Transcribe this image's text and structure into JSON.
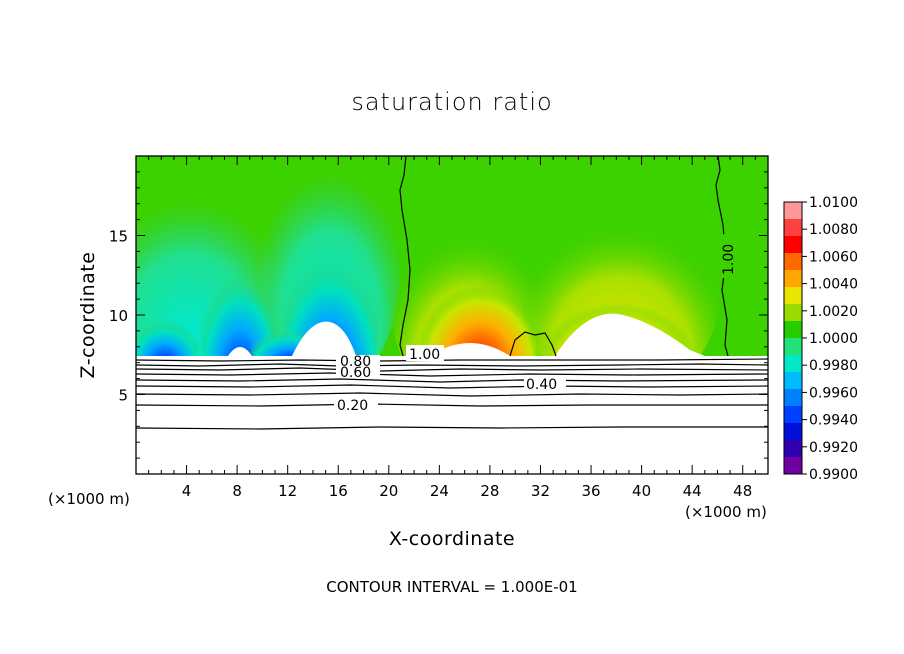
{
  "chart_data": {
    "type": "heatmap",
    "title": "saturation ratio",
    "xlabel": "X-coordinate",
    "ylabel": "Z-coordinate",
    "x_unit": "(×1000 m)",
    "y_unit": "(×1000 m)",
    "xlim": [
      0,
      50
    ],
    "ylim": [
      0,
      20
    ],
    "x_ticks": [
      4,
      8,
      12,
      16,
      20,
      24,
      28,
      32,
      36,
      40,
      44,
      48
    ],
    "y_ticks": [
      5,
      10,
      15
    ],
    "colorbar": {
      "levels": [
        "1.0100",
        "1.0080",
        "1.0060",
        "1.0040",
        "1.0020",
        "1.0000",
        "0.9980",
        "0.9960",
        "0.9940",
        "0.9920",
        "0.9900"
      ],
      "colors": [
        "#ff9999",
        "#ff4040",
        "#ff0000",
        "#ff6a00",
        "#ffa800",
        "#e8e600",
        "#9bdc00",
        "#24cc00",
        "#22e07a",
        "#00e8c8",
        "#00bcff",
        "#0080ff",
        "#0040ff",
        "#0010d8",
        "#3000b0",
        "#7000a0"
      ]
    },
    "contour_labels": [
      {
        "text": "1.00"
      },
      {
        "text": "1.00"
      },
      {
        "text": "0.80"
      },
      {
        "text": "0.60"
      },
      {
        "text": "0.40"
      },
      {
        "text": "0.20"
      }
    ],
    "footer": "CONTOUR INTERVAL = 1.000E-01"
  }
}
